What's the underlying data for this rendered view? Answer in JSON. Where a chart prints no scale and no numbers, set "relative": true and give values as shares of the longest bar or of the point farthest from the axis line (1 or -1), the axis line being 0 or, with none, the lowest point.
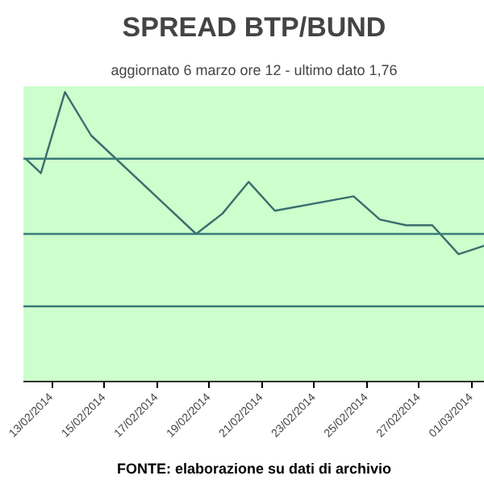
{
  "chart_data": {
    "type": "line",
    "title": "SPREAD BTP/BUND",
    "subtitle": "aggiornato 6 marzo ore 12 - ultimo dato 1,76",
    "annotations": [
      "FONTE: elaborazione su dati di archivio"
    ],
    "relative": true,
    "marker": "none",
    "ref_lines": [
      {
        "axis": "y",
        "value": 0.26,
        "color": "#3a7a7a"
      },
      {
        "axis": "y",
        "value": 0.51,
        "color": "#3a7a7a"
      },
      {
        "axis": "y",
        "value": 0.77,
        "color": "#3a7a7a"
      }
    ],
    "line_style": "solid",
    "x": [
      "2014-02-12T00:00",
      "2014-02-12T14:00",
      "2014-02-13T12:00",
      "2014-02-14T12:00",
      "2014-02-18T12:00",
      "2014-02-19T12:00",
      "2014-02-20T12:00",
      "2014-02-21T12:00",
      "2014-02-24T12:00",
      "2014-02-25T12:00",
      "2014-02-26T12:00",
      "2014-02-27T12:00",
      "2014-02-28T12:00",
      "2014-03-01T12:00"
    ],
    "xlim": [
      "2014-02-11T22:00",
      "2014-03-01T12:00"
    ],
    "xticks": [
      {
        "value": "2014-02-13",
        "label": "13/02/2014"
      },
      {
        "value": "2014-02-15",
        "label": "15/02/2014"
      },
      {
        "value": "2014-02-17",
        "label": "17/02/2014"
      },
      {
        "value": "2014-02-19",
        "label": "19/02/2014"
      },
      {
        "value": "2014-02-21",
        "label": "21/02/2014"
      },
      {
        "value": "2014-02-23",
        "label": "23/02/2014"
      },
      {
        "value": "2014-02-25",
        "label": "25/02/2014"
      },
      {
        "value": "2014-02-27",
        "label": "27/02/2014"
      },
      {
        "value": "2014-03-01",
        "label": "01/03/2014"
      }
    ],
    "series": [
      {
        "color": "#3a6e6e",
        "values": [
          0.77,
          0.72,
          1,
          0.85,
          0.51,
          0.58,
          0.69,
          0.59,
          0.64,
          0.56,
          0.54,
          0.54,
          0.44,
          0.47
        ]
      }
    ]
  }
}
